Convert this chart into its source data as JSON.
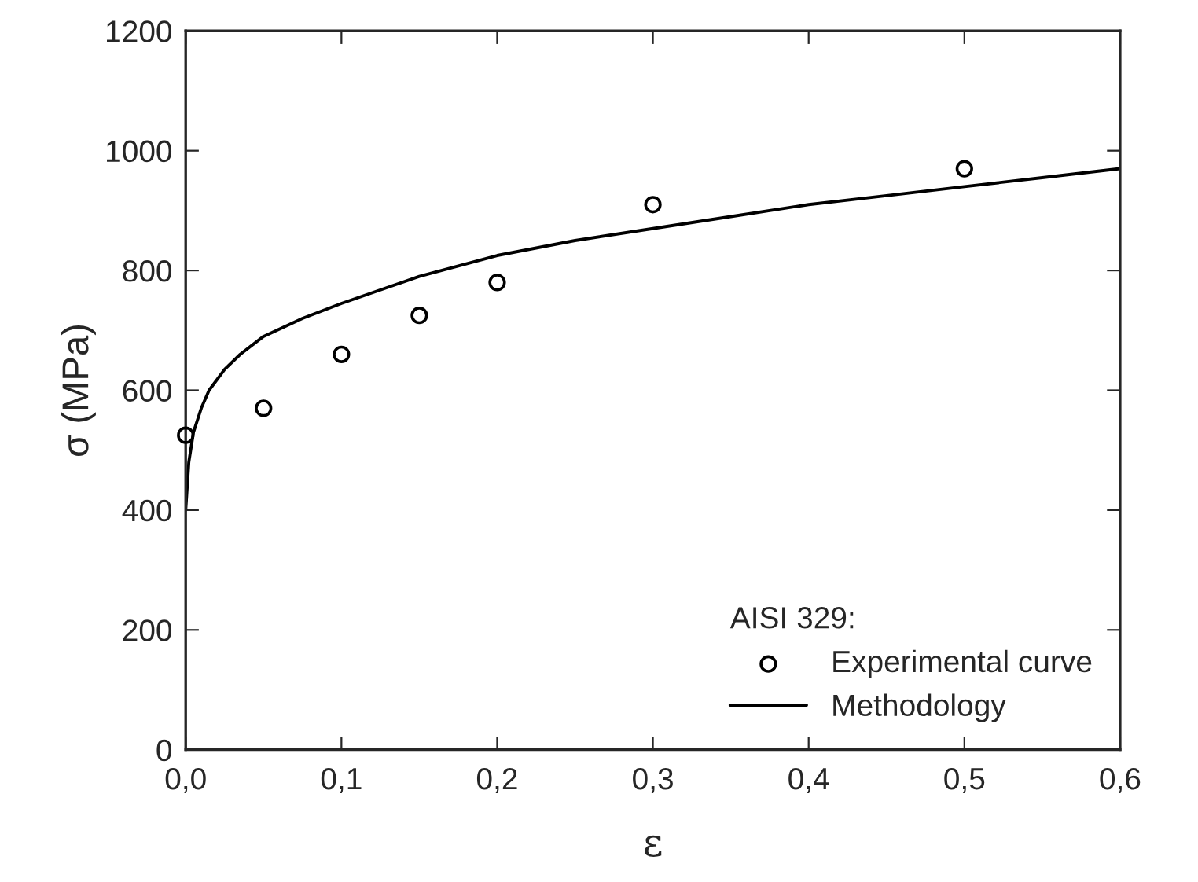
{
  "chart_data": {
    "type": "scatter",
    "xlabel": "ε",
    "ylabel": "σ (MPa)",
    "legend_title": "AISI 329:",
    "legend": "bottom right",
    "grid": false,
    "xlim": [
      0,
      0.6
    ],
    "ylim": [
      0,
      1200
    ],
    "xticks": [
      {
        "value": 0,
        "label": "0,0"
      },
      {
        "value": 0.1,
        "label": "0,1"
      },
      {
        "value": 0.2,
        "label": "0,2"
      },
      {
        "value": 0.3,
        "label": "0,3"
      },
      {
        "value": 0.4,
        "label": "0,4"
      },
      {
        "value": 0.5,
        "label": "0,5"
      },
      {
        "value": 0.6,
        "label": "0,6"
      }
    ],
    "yticks": [
      0,
      200,
      400,
      600,
      800,
      1000,
      1200
    ],
    "series": [
      {
        "name": "Experimental curve",
        "marker": "circle",
        "color": "#000000",
        "x": [
          0.0,
          0.05,
          0.1,
          0.15,
          0.2,
          0.3,
          0.5
        ],
        "values": [
          525,
          570,
          660,
          725,
          780,
          910,
          970
        ]
      },
      {
        "name": "Methodology",
        "type": "line",
        "marker": "none",
        "line_style": "solid",
        "color": "#000000",
        "x": [
          0.0,
          0.002,
          0.005,
          0.01,
          0.015,
          0.025,
          0.035,
          0.05,
          0.075,
          0.1,
          0.15,
          0.2,
          0.25,
          0.3,
          0.35,
          0.4,
          0.45,
          0.5,
          0.55,
          0.6
        ],
        "values": [
          400,
          480,
          530,
          570,
          600,
          635,
          660,
          690,
          720,
          745,
          790,
          825,
          850,
          870,
          890,
          910,
          925,
          940,
          955,
          970
        ]
      }
    ]
  }
}
